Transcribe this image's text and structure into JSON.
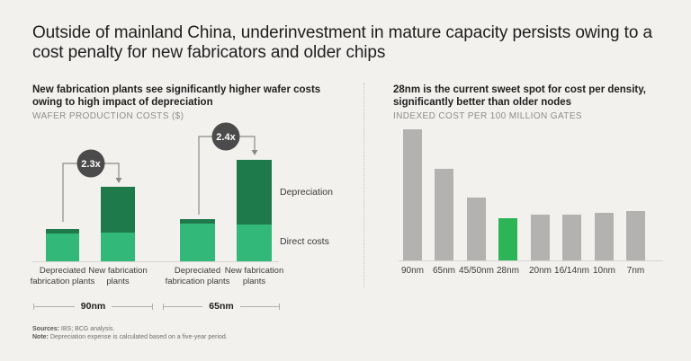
{
  "title": "Outside of mainland China, underinvestment in mature capacity persists owing to a cost penalty for new fabricators and older chips",
  "colors": {
    "background": "#f2f1ee",
    "direct_costs_green": "#32b878",
    "depreciation_green": "#1e7a4b",
    "highlight_green": "#2cb457",
    "bar_gray": "#b3b2b0",
    "callout_circle": "#4b4b4b",
    "bracket_line": "#8a8a88"
  },
  "chart_data": [
    {
      "id": "wafer_production_costs",
      "type": "bar",
      "stacked": true,
      "title": "New fabrication plants see significantly higher wafer costs owing to high impact of depreciation",
      "subtitle": "WAFER PRODUCTION COSTS ($)",
      "ylabel": "Wafer production costs ($, indexed)",
      "y_axis_visible": false,
      "groups": [
        "90nm",
        "65nm"
      ],
      "categories": [
        "Depreciated fabrication plants",
        "New fabrication plants",
        "Depreciated fabrication plants",
        "New fabrication plants"
      ],
      "series": [
        {
          "name": "Direct costs",
          "color": "#32b878",
          "values": [
            31,
            32,
            42,
            41
          ]
        },
        {
          "name": "Depreciation",
          "color": "#1e7a4b",
          "values": [
            5,
            51,
            5,
            72
          ]
        }
      ],
      "totals": [
        36,
        83,
        47,
        113
      ],
      "annotations": [
        {
          "label": "2.3x",
          "from_bar": 0,
          "to_bar": 1
        },
        {
          "label": "2.4x",
          "from_bar": 2,
          "to_bar": 3
        }
      ],
      "legend_position": "right"
    },
    {
      "id": "indexed_cost_per_gates",
      "type": "bar",
      "title": "28nm is the current sweet spot for cost per density, significantly better than older nodes",
      "subtitle": "INDEXED COST PER 100 MILLION GATES",
      "ylabel": "Indexed cost per 100 million gates",
      "y_axis_visible": false,
      "categories": [
        "90nm",
        "65nm",
        "45/50nm",
        "28nm",
        "20nm",
        "16/14nm",
        "10nm",
        "7nm"
      ],
      "values": [
        100,
        70,
        48,
        32,
        35,
        35,
        36,
        38
      ],
      "highlight_category": "28nm",
      "bar_color": "#b3b2b0",
      "highlight_color": "#2cb457"
    }
  ],
  "footer": {
    "sources_label": "Sources:",
    "sources_text": " IBS; BCG analysis.",
    "note_label": "Note:",
    "note_text": " Depreciation expense is calculated based on a five-year period."
  }
}
